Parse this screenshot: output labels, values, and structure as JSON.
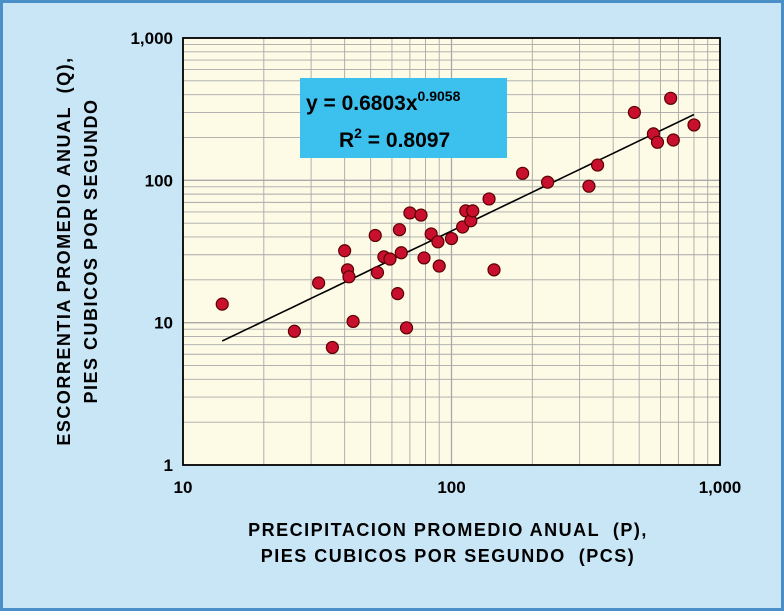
{
  "chart_data": {
    "type": "scatter",
    "x_scale": "log",
    "y_scale": "log",
    "xlim": [
      10,
      1000
    ],
    "ylim": [
      1,
      1000
    ],
    "x_ticks": [
      "10",
      "100",
      "1,000"
    ],
    "y_ticks": [
      "1",
      "10",
      "100",
      "1,000"
    ],
    "xlabel_lines": [
      "PRECIPITACION PROMEDIO ANUAL  (P),",
      "PIES CUBICOS POR SEGUNDO  (PCS)"
    ],
    "ylabel_lines": [
      "ESCORRENTIA PROMEDIO ANUAL  (Q),",
      "PIES CUBICOS POR SEGUNDO"
    ],
    "grid": true,
    "plot_background": "#fdfbe6",
    "grid_color": "#a8a8a8",
    "marker_color": "#c8102e",
    "marker_edge": "#5a0000",
    "trendline_color": "#000000",
    "equation_box_color": "#3cc0ee",
    "annotation": {
      "eq_prefix": "y = 0.6803x",
      "eq_exp": "0.9058",
      "r2_prefix": "R",
      "r2_sup": "2",
      "r2_suffix": " = 0.8097"
    },
    "trendline": {
      "a": 0.6803,
      "b": 0.9058,
      "x_range": [
        14,
        800
      ]
    },
    "points": [
      {
        "x": 14,
        "y": 13.5
      },
      {
        "x": 26,
        "y": 8.7
      },
      {
        "x": 32,
        "y": 19
      },
      {
        "x": 36,
        "y": 6.7
      },
      {
        "x": 40,
        "y": 32
      },
      {
        "x": 41,
        "y": 23.5
      },
      {
        "x": 41.5,
        "y": 21
      },
      {
        "x": 43,
        "y": 10.2
      },
      {
        "x": 52,
        "y": 41
      },
      {
        "x": 53,
        "y": 22.5
      },
      {
        "x": 56,
        "y": 29
      },
      {
        "x": 59,
        "y": 28
      },
      {
        "x": 63,
        "y": 16
      },
      {
        "x": 64,
        "y": 45
      },
      {
        "x": 65,
        "y": 31
      },
      {
        "x": 68,
        "y": 9.2
      },
      {
        "x": 70,
        "y": 59
      },
      {
        "x": 77,
        "y": 57
      },
      {
        "x": 79,
        "y": 28.5
      },
      {
        "x": 84,
        "y": 42
      },
      {
        "x": 89,
        "y": 37
      },
      {
        "x": 90,
        "y": 25
      },
      {
        "x": 100,
        "y": 39
      },
      {
        "x": 110,
        "y": 47
      },
      {
        "x": 113,
        "y": 61
      },
      {
        "x": 118,
        "y": 52
      },
      {
        "x": 120,
        "y": 61
      },
      {
        "x": 138,
        "y": 74
      },
      {
        "x": 144,
        "y": 23.5
      },
      {
        "x": 184,
        "y": 112
      },
      {
        "x": 228,
        "y": 97
      },
      {
        "x": 325,
        "y": 91
      },
      {
        "x": 350,
        "y": 128
      },
      {
        "x": 480,
        "y": 300
      },
      {
        "x": 565,
        "y": 212
      },
      {
        "x": 585,
        "y": 185
      },
      {
        "x": 655,
        "y": 377
      },
      {
        "x": 670,
        "y": 192
      },
      {
        "x": 800,
        "y": 245
      }
    ]
  }
}
